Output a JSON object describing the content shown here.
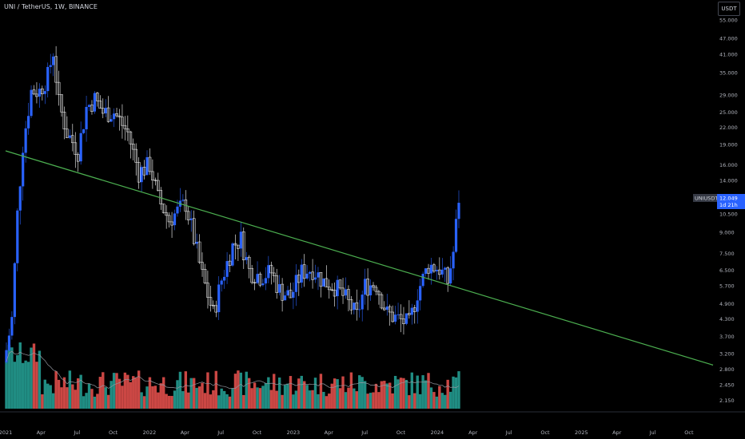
{
  "header": {
    "title": "UNI / TetherUS, 1W, BINANCE",
    "currency": "USDT"
  },
  "badges": {
    "symbol": "UNIUSDT",
    "price": "12.049",
    "countdown": "1d 21h"
  },
  "colors": {
    "background": "#000000",
    "up": "#2962ff",
    "down": "#ffffff",
    "vol_up": "#26a69a",
    "vol_down": "#ef5350",
    "trendline": "#4caf50",
    "vol_ma": "#9598a1"
  },
  "chart_data": {
    "type": "candlestick",
    "title": "UNI / TetherUS, 1W, BINANCE",
    "y_scale": "log",
    "ylim": [
      2.0,
      60.0
    ],
    "y_ticks": [
      "55.000",
      "47.000",
      "41.000",
      "35.000",
      "29.000",
      "25.000",
      "22.000",
      "19.000",
      "16.000",
      "14.000",
      "10.500",
      "9.000",
      "7.500",
      "6.500",
      "5.700",
      "4.900",
      "4.300",
      "3.700",
      "3.200",
      "2.800",
      "2.450",
      "2.150"
    ],
    "x_ticks": [
      "2021",
      "Apr",
      "Jul",
      "Oct",
      "2022",
      "Apr",
      "Jul",
      "Oct",
      "2023",
      "Apr",
      "Jul",
      "Oct",
      "2024",
      "Apr",
      "Jul",
      "Oct",
      "2025",
      "Apr",
      "Jul",
      "Oct"
    ],
    "x_range": [
      "2021-01-01",
      "2025-12-01"
    ],
    "last_price": 12.049,
    "close_series": [
      [
        "2021-01-03",
        3.3
      ],
      [
        "2021-01-17",
        4.3
      ],
      [
        "2021-01-31",
        10.5
      ],
      [
        "2021-02-14",
        19.0
      ],
      [
        "2021-03-07",
        30.0
      ],
      [
        "2021-03-28",
        30.0
      ],
      [
        "2021-04-18",
        34.0
      ],
      [
        "2021-05-02",
        42.0
      ],
      [
        "2021-05-16",
        27.0
      ],
      [
        "2021-06-06",
        21.0
      ],
      [
        "2021-07-04",
        18.0
      ],
      [
        "2021-07-25",
        26.0
      ],
      [
        "2021-08-15",
        28.0
      ],
      [
        "2021-09-05",
        25.0
      ],
      [
        "2021-10-03",
        25.0
      ],
      [
        "2021-11-07",
        21.0
      ],
      [
        "2021-12-05",
        15.0
      ],
      [
        "2022-01-02",
        16.0
      ],
      [
        "2022-01-23",
        12.0
      ],
      [
        "2022-02-20",
        10.0
      ],
      [
        "2022-03-20",
        11.0
      ],
      [
        "2022-04-03",
        11.5
      ],
      [
        "2022-04-24",
        8.5
      ],
      [
        "2022-05-15",
        6.2
      ],
      [
        "2022-06-12",
        4.5
      ],
      [
        "2022-07-03",
        6.0
      ],
      [
        "2022-07-31",
        8.0
      ],
      [
        "2022-08-21",
        8.5
      ],
      [
        "2022-09-11",
        6.5
      ],
      [
        "2022-10-09",
        6.2
      ],
      [
        "2022-11-06",
        6.4
      ],
      [
        "2022-11-27",
        5.5
      ],
      [
        "2022-12-25",
        5.2
      ],
      [
        "2023-01-22",
        6.4
      ],
      [
        "2023-02-19",
        6.6
      ],
      [
        "2023-03-19",
        5.9
      ],
      [
        "2023-04-16",
        5.7
      ],
      [
        "2023-05-14",
        5.1
      ],
      [
        "2023-06-11",
        4.4
      ],
      [
        "2023-07-02",
        5.7
      ],
      [
        "2023-07-30",
        5.8
      ],
      [
        "2023-08-27",
        4.5
      ],
      [
        "2023-09-24",
        4.3
      ],
      [
        "2023-10-22",
        4.1
      ],
      [
        "2023-11-12",
        5.4
      ],
      [
        "2023-12-10",
        6.8
      ],
      [
        "2024-01-07",
        6.6
      ],
      [
        "2024-01-28",
        5.9
      ],
      [
        "2024-02-11",
        7.6
      ],
      [
        "2024-02-25",
        12.049
      ]
    ],
    "trendline": {
      "start": [
        "2021-01-01",
        18.0
      ],
      "end": [
        "2025-12-01",
        2.9
      ]
    },
    "volume": "histogram with moving-average line"
  }
}
